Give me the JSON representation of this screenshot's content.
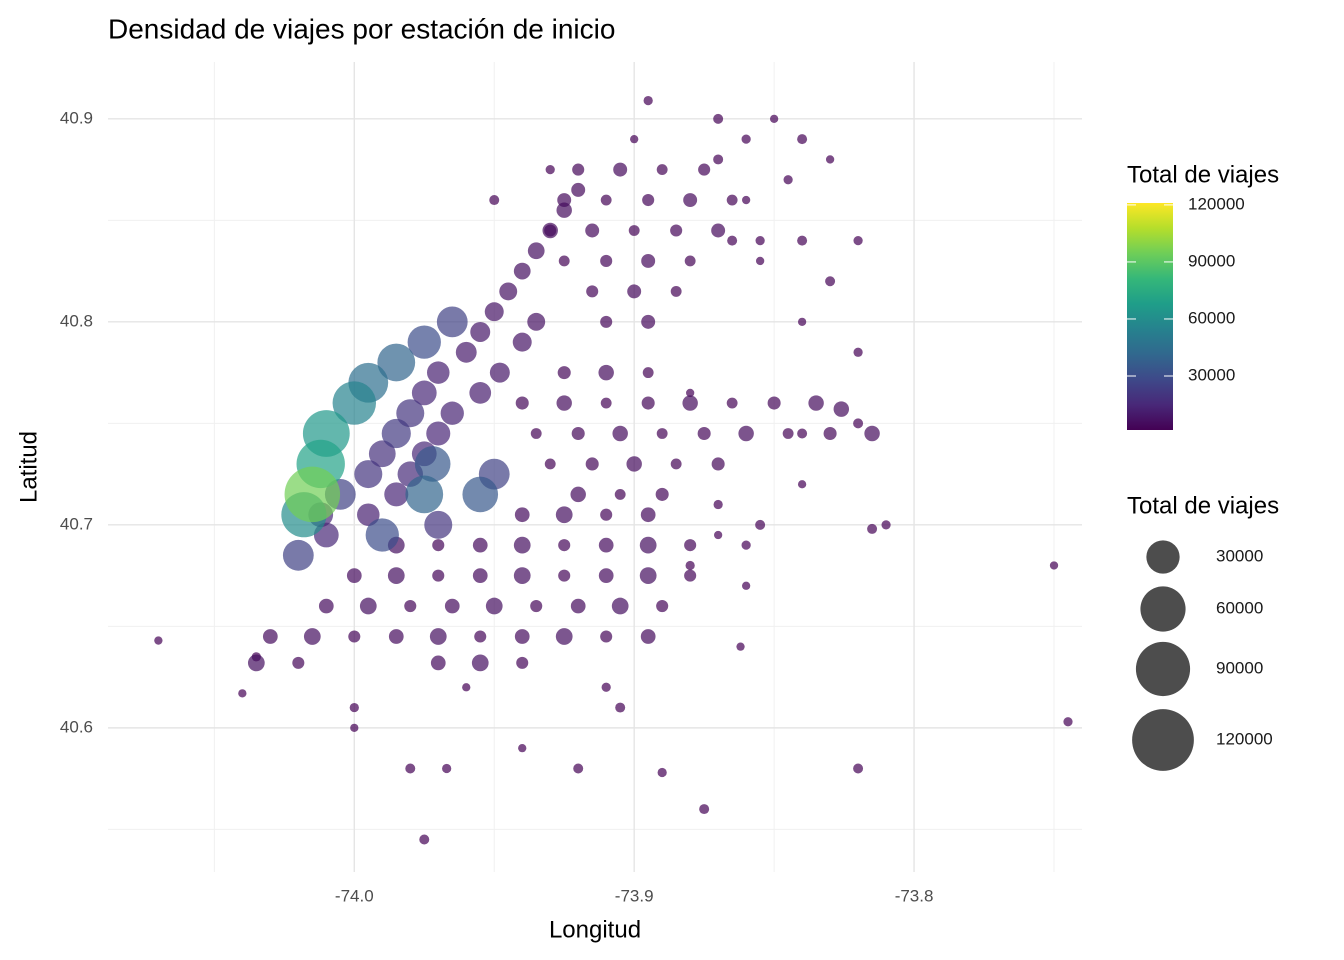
{
  "chart_data": {
    "type": "scatter",
    "title": "Densidad de viajes por estación de inicio",
    "x_label": "Longitud",
    "y_label": "Latitud",
    "color_legend_title": "Total de viajes",
    "size_legend_title": "Total de viajes",
    "xlim": [
      -74.088,
      -73.74
    ],
    "ylim": [
      40.529,
      40.928
    ],
    "xticks": [
      {
        "value": -74,
        "label": "-74.0"
      },
      -73.9,
      -73.8
    ],
    "yticks": [
      40.6,
      40.7,
      40.8,
      40.9
    ],
    "x_minor_ticks": [
      -74.05,
      -73.95,
      -73.85,
      -73.75
    ],
    "y_minor_ticks": [
      40.55,
      40.65,
      40.75,
      40.85
    ],
    "grid": true,
    "alpha": 0.7,
    "colormap": [
      "#440154",
      "#482878",
      "#3e4989",
      "#31688e",
      "#26828e",
      "#1f9e89",
      "#35b779",
      "#6ece58",
      "#b5de2b",
      "#fde725"
    ],
    "color_lim": [
      1600,
      121000
    ],
    "color_ticks": [
      30000,
      60000,
      90000,
      120000
    ],
    "size_breaks": [
      30000,
      60000,
      90000,
      120000
    ],
    "x": [
      -74.07,
      -73.895,
      -73.87,
      -73.85,
      -73.86,
      -73.84,
      -73.83,
      -73.82,
      -73.83,
      -73.84,
      -73.82,
      -73.82,
      -73.84,
      -73.81,
      -73.815,
      -73.75,
      -73.745,
      -73.82,
      -73.862,
      -73.89,
      -73.875,
      -73.94,
      -73.967,
      -73.975,
      -74.0,
      -74.0,
      -73.98,
      -74.04,
      -74.035,
      -73.92,
      -73.96,
      -73.91,
      -73.905,
      -73.86,
      -73.86,
      -73.855,
      -73.87,
      -73.88,
      -73.865,
      -73.86,
      -73.855,
      -73.84,
      -73.855,
      -73.845,
      -73.87,
      -73.9,
      -73.93,
      -73.95,
      -73.88,
      -73.87,
      -73.84,
      -73.92,
      -73.905,
      -73.89,
      -73.875,
      -73.925,
      -73.91,
      -73.895,
      -73.88,
      -73.865,
      -73.93,
      -73.915,
      -73.9,
      -73.885,
      -73.87,
      -73.925,
      -73.91,
      -73.895,
      -73.88,
      -73.915,
      -73.9,
      -73.885,
      -73.91,
      -73.895,
      -73.925,
      -73.91,
      -73.895,
      -73.94,
      -73.925,
      -73.91,
      -73.895,
      -73.88,
      -73.865,
      -73.85,
      -73.835,
      -73.935,
      -73.92,
      -73.905,
      -73.89,
      -73.875,
      -73.86,
      -73.845,
      -73.83,
      -73.815,
      -73.93,
      -73.915,
      -73.9,
      -73.885,
      -73.87,
      -73.92,
      -73.905,
      -73.89,
      -73.826,
      -73.94,
      -73.925,
      -73.91,
      -73.895,
      -73.985,
      -73.97,
      -73.955,
      -73.94,
      -73.925,
      -73.91,
      -73.895,
      -73.88,
      -74.0,
      -73.985,
      -73.97,
      -73.955,
      -73.94,
      -73.925,
      -73.91,
      -73.895,
      -73.88,
      -74.01,
      -73.995,
      -73.98,
      -73.965,
      -73.95,
      -73.935,
      -73.92,
      -73.905,
      -73.89,
      -74.03,
      -74.015,
      -74.0,
      -73.985,
      -73.97,
      -73.955,
      -73.94,
      -73.925,
      -73.91,
      -73.895,
      -74.035,
      -74.02,
      -73.97,
      -73.955,
      -73.94,
      -73.92,
      -73.925,
      -73.93,
      -73.935,
      -73.94,
      -73.945,
      -73.935,
      -73.95,
      -73.94,
      -73.955,
      -73.948,
      -73.96,
      -73.955,
      -73.97,
      -73.995,
      -73.965,
      -73.985,
      -73.97,
      -73.975,
      -74.012,
      -73.975,
      -74.01,
      -73.98,
      -73.99,
      -73.995,
      -73.98,
      -73.97,
      -73.985,
      -74.005,
      -73.965,
      -73.95,
      -74.02,
      -73.99,
      -73.975,
      -73.972,
      -73.955,
      -73.975,
      -73.985,
      -73.995,
      -74.0,
      -74.018,
      -74.01,
      -74.012,
      -74.015
    ],
    "y": [
      40.643,
      40.909,
      40.9,
      40.9,
      40.89,
      40.89,
      40.88,
      40.84,
      40.82,
      40.8,
      40.785,
      40.75,
      40.72,
      40.7,
      40.698,
      40.68,
      40.603,
      40.58,
      40.64,
      40.578,
      40.56,
      40.59,
      40.58,
      40.545,
      40.6,
      40.61,
      40.58,
      40.617,
      40.635,
      40.58,
      40.62,
      40.62,
      40.61,
      40.67,
      40.69,
      40.7,
      40.695,
      40.68,
      40.84,
      40.86,
      40.84,
      40.84,
      40.83,
      40.87,
      40.88,
      40.89,
      40.875,
      40.86,
      40.765,
      40.71,
      40.745,
      40.875,
      40.875,
      40.875,
      40.875,
      40.86,
      40.86,
      40.86,
      40.86,
      40.86,
      40.845,
      40.845,
      40.845,
      40.845,
      40.845,
      40.83,
      40.83,
      40.83,
      40.83,
      40.815,
      40.815,
      40.815,
      40.8,
      40.8,
      40.775,
      40.775,
      40.775,
      40.76,
      40.76,
      40.76,
      40.76,
      40.76,
      40.76,
      40.76,
      40.76,
      40.745,
      40.745,
      40.745,
      40.745,
      40.745,
      40.745,
      40.745,
      40.745,
      40.745,
      40.73,
      40.73,
      40.73,
      40.73,
      40.73,
      40.715,
      40.715,
      40.715,
      40.757,
      40.705,
      40.705,
      40.705,
      40.705,
      40.69,
      40.69,
      40.69,
      40.69,
      40.69,
      40.69,
      40.69,
      40.69,
      40.675,
      40.675,
      40.675,
      40.675,
      40.675,
      40.675,
      40.675,
      40.675,
      40.675,
      40.66,
      40.66,
      40.66,
      40.66,
      40.66,
      40.66,
      40.66,
      40.66,
      40.66,
      40.645,
      40.645,
      40.645,
      40.645,
      40.645,
      40.645,
      40.645,
      40.645,
      40.645,
      40.645,
      40.632,
      40.632,
      40.632,
      40.632,
      40.632,
      40.865,
      40.855,
      40.845,
      40.835,
      40.825,
      40.815,
      40.8,
      40.805,
      40.79,
      40.795,
      40.775,
      40.785,
      40.765,
      40.775,
      40.705,
      40.755,
      40.715,
      40.745,
      40.765,
      40.705,
      40.735,
      40.695,
      40.725,
      40.735,
      40.725,
      40.755,
      40.7,
      40.745,
      40.715,
      40.8,
      40.725,
      40.685,
      40.695,
      40.79,
      40.73,
      40.715,
      40.715,
      40.78,
      40.77,
      40.76,
      40.705,
      40.745,
      40.73,
      40.715
    ],
    "values": [
      1800,
      2000,
      2200,
      1800,
      2000,
      2200,
      1800,
      2000,
      2200,
      1800,
      2000,
      2200,
      1800,
      2000,
      2200,
      1800,
      2000,
      2200,
      1800,
      2000,
      2200,
      1800,
      2000,
      2200,
      1800,
      2000,
      2200,
      1800,
      2000,
      2200,
      1800,
      2000,
      2200,
      1800,
      2000,
      2200,
      1800,
      2000,
      2200,
      1800,
      2000,
      2200,
      1800,
      2000,
      2200,
      1800,
      2000,
      2200,
      1800,
      2000,
      2200,
      3000,
      4000,
      2500,
      3000,
      4000,
      2500,
      3000,
      4000,
      2500,
      3000,
      4000,
      2500,
      3000,
      4000,
      2500,
      3000,
      4000,
      2500,
      3000,
      4000,
      2500,
      3000,
      4000,
      3500,
      5000,
      2500,
      3500,
      5000,
      2500,
      3500,
      5000,
      2500,
      3500,
      5000,
      2500,
      3500,
      5000,
      2500,
      3500,
      5000,
      2500,
      3500,
      5000,
      2500,
      3500,
      5000,
      2500,
      3500,
      5000,
      2500,
      3500,
      5000,
      4500,
      6000,
      3000,
      4500,
      6000,
      3000,
      4500,
      6000,
      3000,
      4500,
      6000,
      3000,
      4500,
      6000,
      3000,
      4500,
      6000,
      3000,
      4500,
      6000,
      3000,
      4500,
      6000,
      3000,
      4500,
      6000,
      3000,
      4500,
      6000,
      3000,
      4500,
      6000,
      3000,
      4500,
      6000,
      3000,
      4500,
      6000,
      3000,
      4500,
      6000,
      3000,
      4500,
      6000,
      3000,
      4000,
      5000,
      5000,
      6000,
      6000,
      7000,
      7000,
      8000,
      8000,
      9000,
      9000,
      10000,
      11000,
      12000,
      12000,
      13000,
      14000,
      14000,
      15000,
      15000,
      15000,
      15000,
      16000,
      18000,
      20000,
      20000,
      20000,
      22000,
      25000,
      25000,
      25000,
      25000,
      30000,
      30000,
      35000,
      35000,
      40000,
      40000,
      45000,
      55000,
      60000,
      65000,
      70000,
      95000
    ]
  }
}
